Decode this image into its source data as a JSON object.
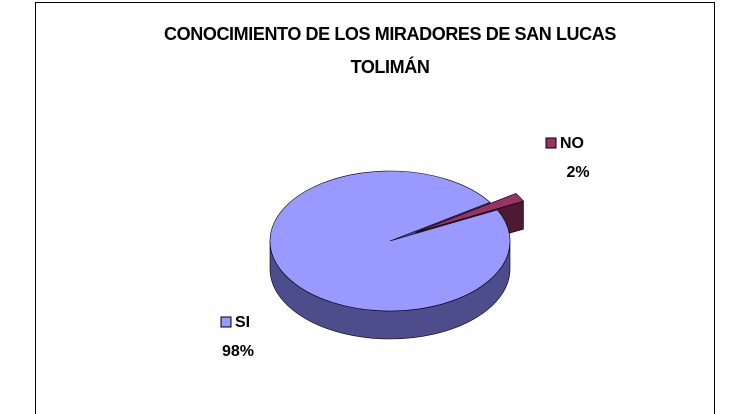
{
  "chart_data": {
    "type": "pie",
    "title": "CONOCIMIENTO DE LOS MIRADORES DE SAN LUCAS TOLIMÁN",
    "categories": [
      "SI",
      "NO"
    ],
    "values": [
      98,
      2
    ],
    "value_labels": [
      "98%",
      "2%"
    ],
    "colors": [
      "#9999ff",
      "#993366"
    ],
    "side_colors": [
      "#4d4d8c",
      "#4d1a33"
    ],
    "legend": "beside-slice",
    "3d": true
  }
}
